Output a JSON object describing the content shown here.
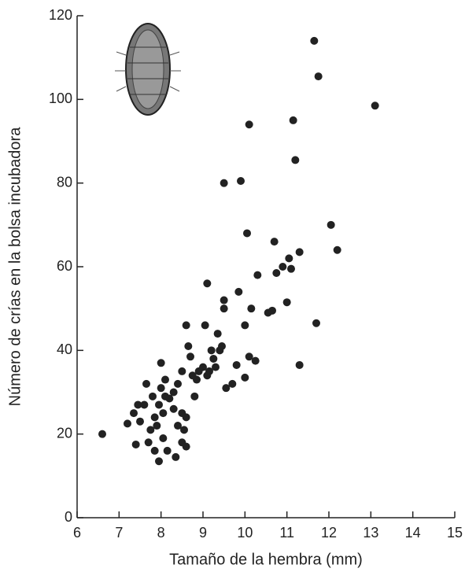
{
  "chart_data": {
    "type": "scatter",
    "x_label": "Tamaño de la hembra (mm)",
    "y_label": "Número de crías en la bolsa incubadora",
    "xlim": [
      6,
      15
    ],
    "xticks": [
      6,
      7,
      8,
      9,
      10,
      11,
      12,
      13,
      14,
      15
    ],
    "ylim": [
      0,
      120
    ],
    "yticks": [
      0,
      20,
      40,
      60,
      80,
      100,
      120
    ],
    "grid": false,
    "color": "#222222",
    "x": [
      6.6,
      7.2,
      7.35,
      7.4,
      7.45,
      7.5,
      7.6,
      7.65,
      7.7,
      7.75,
      7.8,
      7.85,
      7.85,
      7.9,
      7.95,
      7.95,
      8.0,
      8.0,
      8.05,
      8.05,
      8.1,
      8.1,
      8.15,
      8.2,
      8.3,
      8.3,
      8.35,
      8.4,
      8.4,
      8.5,
      8.5,
      8.5,
      8.55,
      8.6,
      8.6,
      8.6,
      8.65,
      8.7,
      8.75,
      8.8,
      8.85,
      8.9,
      9.0,
      9.05,
      9.1,
      9.1,
      9.15,
      9.2,
      9.25,
      9.3,
      9.35,
      9.4,
      9.45,
      9.5,
      9.5,
      9.5,
      9.55,
      9.7,
      9.8,
      9.85,
      9.9,
      10.0,
      10.0,
      10.05,
      10.1,
      10.1,
      10.15,
      10.25,
      10.3,
      10.55,
      10.65,
      10.7,
      10.75,
      10.9,
      11.0,
      11.05,
      11.1,
      11.15,
      11.2,
      11.3,
      11.3,
      11.65,
      11.7,
      11.75,
      12.05,
      12.2,
      13.1
    ],
    "values": [
      20,
      22.5,
      25,
      17.5,
      27,
      23,
      27,
      32,
      18,
      21,
      29,
      16,
      24,
      22,
      27,
      13.5,
      31,
      37,
      25,
      19,
      33,
      29,
      16,
      28.5,
      30,
      26,
      14.5,
      22,
      32,
      35,
      25,
      18,
      21,
      17,
      24,
      46,
      41,
      38.5,
      34,
      29,
      33,
      35,
      36,
      46,
      34,
      56,
      35,
      40,
      38,
      36,
      44,
      40,
      41,
      52,
      50,
      80,
      31,
      32,
      36.5,
      54,
      80.5,
      46,
      33.5,
      68,
      38.5,
      94,
      50,
      37.5,
      58,
      49,
      49.5,
      66,
      58.5,
      60,
      51.5,
      62,
      59.5,
      95,
      85.5,
      63.5,
      36.5,
      114,
      46.5,
      105.5,
      70,
      64,
      98.5
    ]
  }
}
